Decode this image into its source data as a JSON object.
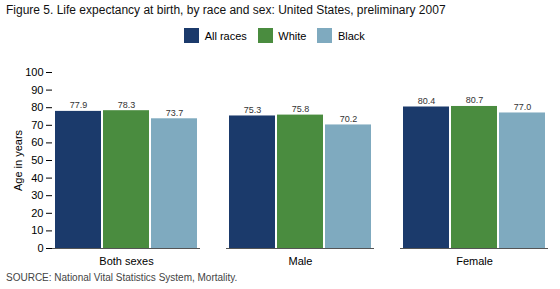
{
  "chart_data": {
    "type": "bar",
    "title": "Figure 5. Life expectancy at birth, by race and sex: United States, preliminary 2007",
    "ylabel": "Age in years",
    "caption": "SOURCE: National Vital Statistics System, Mortality.",
    "categories": [
      "Both sexes",
      "Male",
      "Female"
    ],
    "series": [
      {
        "name": "All races",
        "color": "#1b3a6b",
        "values": [
          77.9,
          75.3,
          80.4
        ],
        "value_labels": [
          "77.9",
          "75.3",
          "80.4"
        ]
      },
      {
        "name": "White",
        "color": "#4a8c3f",
        "values": [
          78.3,
          75.8,
          80.7
        ],
        "value_labels": [
          "78.3",
          "75.8",
          "80.7"
        ]
      },
      {
        "name": "Black",
        "color": "#7faabf",
        "values": [
          73.7,
          70.2,
          77.0
        ],
        "value_labels": [
          "73.7",
          "70.2",
          "77.0"
        ]
      }
    ],
    "ylim": [
      0,
      100
    ],
    "yticks": [
      0,
      10,
      20,
      30,
      40,
      50,
      60,
      70,
      80,
      90,
      100
    ],
    "grid": false,
    "legend": "top",
    "data_labels": true
  }
}
